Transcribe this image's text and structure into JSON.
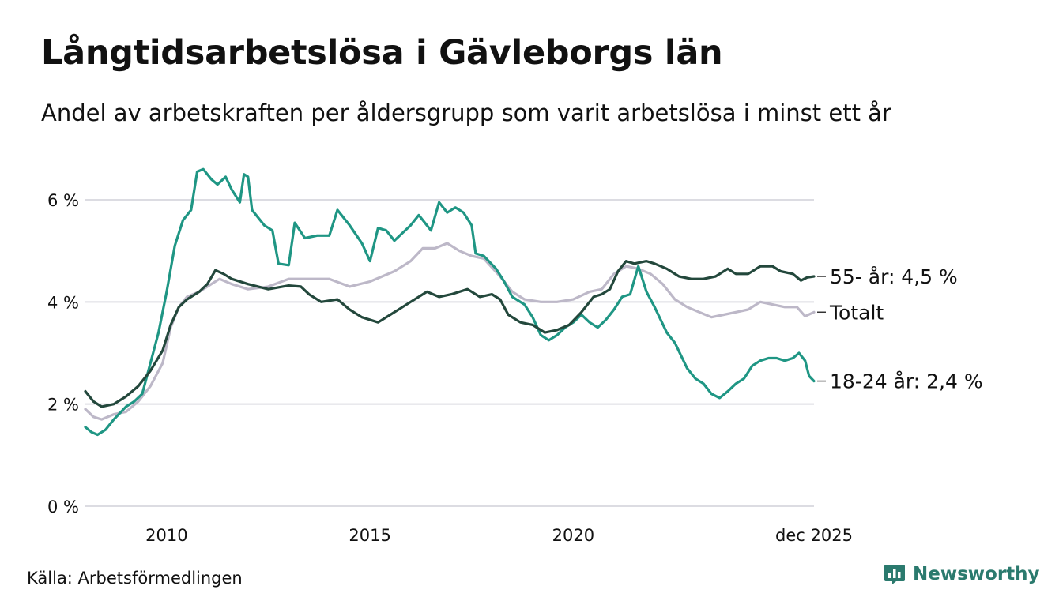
{
  "title": "Långtidsarbetslösa i Gävleborgs län",
  "subtitle": "Andel av arbetskraften per åldersgrupp som varit arbetslösa i minst ett år",
  "source": "Källa: Arbetsförmedlingen",
  "brand": {
    "name": "Newsworthy",
    "icon": "bar-chart-logo-icon"
  },
  "colors": {
    "s55": "#23483c",
    "total": "#bdb8c8",
    "youth": "#1f9684",
    "grid": "#dcdce2",
    "brand": "#2b7a6e"
  },
  "chart_data": {
    "type": "line",
    "title": "Långtidsarbetslösa i Gävleborgs län",
    "xlabel": "",
    "ylabel": "",
    "xlim": [
      2008.0,
      2025.92
    ],
    "ylim": [
      0,
      6
    ],
    "grid": true,
    "y_ticks": [
      {
        "value": 0,
        "label": "0 %"
      },
      {
        "value": 2,
        "label": "2 %"
      },
      {
        "value": 4,
        "label": "4 %"
      },
      {
        "value": 6,
        "label": "6 %"
      }
    ],
    "x_ticks": [
      {
        "value": 2010,
        "label": "2010"
      },
      {
        "value": 2015,
        "label": "2015"
      },
      {
        "value": 2020,
        "label": "2020"
      },
      {
        "value": 2025.92,
        "label": "dec 2025"
      }
    ],
    "series": [
      {
        "name": "55- år",
        "color_key": "s55",
        "end_label": "55- år: 4,5 %",
        "points": [
          [
            2008.0,
            2.25
          ],
          [
            2008.2,
            2.05
          ],
          [
            2008.4,
            1.95
          ],
          [
            2008.7,
            2.0
          ],
          [
            2009.0,
            2.15
          ],
          [
            2009.3,
            2.35
          ],
          [
            2009.6,
            2.65
          ],
          [
            2009.9,
            3.05
          ],
          [
            2010.1,
            3.55
          ],
          [
            2010.3,
            3.9
          ],
          [
            2010.5,
            4.05
          ],
          [
            2010.8,
            4.2
          ],
          [
            2011.0,
            4.35
          ],
          [
            2011.2,
            4.62
          ],
          [
            2011.4,
            4.55
          ],
          [
            2011.6,
            4.45
          ],
          [
            2012.0,
            4.35
          ],
          [
            2012.5,
            4.25
          ],
          [
            2013.0,
            4.32
          ],
          [
            2013.3,
            4.3
          ],
          [
            2013.5,
            4.15
          ],
          [
            2013.8,
            4.0
          ],
          [
            2014.2,
            4.05
          ],
          [
            2014.5,
            3.85
          ],
          [
            2014.8,
            3.7
          ],
          [
            2015.2,
            3.6
          ],
          [
            2015.5,
            3.75
          ],
          [
            2015.8,
            3.9
          ],
          [
            2016.0,
            4.0
          ],
          [
            2016.4,
            4.2
          ],
          [
            2016.7,
            4.1
          ],
          [
            2017.0,
            4.15
          ],
          [
            2017.4,
            4.25
          ],
          [
            2017.7,
            4.1
          ],
          [
            2018.0,
            4.15
          ],
          [
            2018.2,
            4.05
          ],
          [
            2018.4,
            3.75
          ],
          [
            2018.7,
            3.6
          ],
          [
            2019.0,
            3.55
          ],
          [
            2019.3,
            3.4
          ],
          [
            2019.6,
            3.45
          ],
          [
            2019.9,
            3.55
          ],
          [
            2020.2,
            3.8
          ],
          [
            2020.5,
            4.1
          ],
          [
            2020.7,
            4.15
          ],
          [
            2020.9,
            4.25
          ],
          [
            2021.1,
            4.6
          ],
          [
            2021.3,
            4.8
          ],
          [
            2021.5,
            4.75
          ],
          [
            2021.8,
            4.8
          ],
          [
            2022.0,
            4.75
          ],
          [
            2022.3,
            4.65
          ],
          [
            2022.6,
            4.5
          ],
          [
            2022.9,
            4.45
          ],
          [
            2023.2,
            4.45
          ],
          [
            2023.5,
            4.5
          ],
          [
            2023.8,
            4.65
          ],
          [
            2024.0,
            4.55
          ],
          [
            2024.3,
            4.55
          ],
          [
            2024.6,
            4.7
          ],
          [
            2024.9,
            4.7
          ],
          [
            2025.1,
            4.6
          ],
          [
            2025.4,
            4.55
          ],
          [
            2025.6,
            4.42
          ],
          [
            2025.75,
            4.48
          ],
          [
            2025.92,
            4.5
          ]
        ]
      },
      {
        "name": "Totalt",
        "color_key": "total",
        "end_label": "Totalt",
        "points": [
          [
            2008.0,
            1.9
          ],
          [
            2008.2,
            1.75
          ],
          [
            2008.4,
            1.7
          ],
          [
            2008.7,
            1.8
          ],
          [
            2009.0,
            1.85
          ],
          [
            2009.3,
            2.05
          ],
          [
            2009.6,
            2.35
          ],
          [
            2009.9,
            2.8
          ],
          [
            2010.1,
            3.5
          ],
          [
            2010.3,
            3.9
          ],
          [
            2010.5,
            4.1
          ],
          [
            2010.8,
            4.2
          ],
          [
            2011.0,
            4.3
          ],
          [
            2011.3,
            4.45
          ],
          [
            2011.6,
            4.35
          ],
          [
            2012.0,
            4.25
          ],
          [
            2012.5,
            4.3
          ],
          [
            2013.0,
            4.45
          ],
          [
            2013.5,
            4.45
          ],
          [
            2014.0,
            4.45
          ],
          [
            2014.5,
            4.3
          ],
          [
            2015.0,
            4.4
          ],
          [
            2015.3,
            4.5
          ],
          [
            2015.6,
            4.6
          ],
          [
            2016.0,
            4.8
          ],
          [
            2016.3,
            5.05
          ],
          [
            2016.6,
            5.05
          ],
          [
            2016.9,
            5.15
          ],
          [
            2017.2,
            5.0
          ],
          [
            2017.5,
            4.9
          ],
          [
            2017.8,
            4.85
          ],
          [
            2018.2,
            4.5
          ],
          [
            2018.5,
            4.2
          ],
          [
            2018.8,
            4.05
          ],
          [
            2019.2,
            4.0
          ],
          [
            2019.6,
            4.0
          ],
          [
            2020.0,
            4.05
          ],
          [
            2020.4,
            4.2
          ],
          [
            2020.7,
            4.25
          ],
          [
            2021.0,
            4.55
          ],
          [
            2021.3,
            4.7
          ],
          [
            2021.6,
            4.65
          ],
          [
            2021.9,
            4.55
          ],
          [
            2022.2,
            4.35
          ],
          [
            2022.5,
            4.05
          ],
          [
            2022.8,
            3.9
          ],
          [
            2023.1,
            3.8
          ],
          [
            2023.4,
            3.7
          ],
          [
            2023.7,
            3.75
          ],
          [
            2024.0,
            3.8
          ],
          [
            2024.3,
            3.85
          ],
          [
            2024.6,
            4.0
          ],
          [
            2024.9,
            3.95
          ],
          [
            2025.2,
            3.9
          ],
          [
            2025.5,
            3.9
          ],
          [
            2025.7,
            3.72
          ],
          [
            2025.92,
            3.8
          ]
        ]
      },
      {
        "name": "18-24 år",
        "color_key": "youth",
        "end_label": "18-24 år: 2,4 %",
        "points": [
          [
            2008.0,
            1.55
          ],
          [
            2008.15,
            1.45
          ],
          [
            2008.3,
            1.4
          ],
          [
            2008.5,
            1.5
          ],
          [
            2008.7,
            1.7
          ],
          [
            2009.0,
            1.95
          ],
          [
            2009.2,
            2.05
          ],
          [
            2009.4,
            2.2
          ],
          [
            2009.6,
            2.8
          ],
          [
            2009.8,
            3.4
          ],
          [
            2010.0,
            4.2
          ],
          [
            2010.2,
            5.1
          ],
          [
            2010.4,
            5.6
          ],
          [
            2010.6,
            5.8
          ],
          [
            2010.75,
            6.55
          ],
          [
            2010.9,
            6.6
          ],
          [
            2011.1,
            6.4
          ],
          [
            2011.25,
            6.3
          ],
          [
            2011.45,
            6.45
          ],
          [
            2011.6,
            6.2
          ],
          [
            2011.8,
            5.95
          ],
          [
            2011.9,
            6.5
          ],
          [
            2012.0,
            6.45
          ],
          [
            2012.1,
            5.8
          ],
          [
            2012.4,
            5.5
          ],
          [
            2012.6,
            5.4
          ],
          [
            2012.75,
            4.75
          ],
          [
            2013.0,
            4.72
          ],
          [
            2013.15,
            5.55
          ],
          [
            2013.4,
            5.25
          ],
          [
            2013.7,
            5.3
          ],
          [
            2014.0,
            5.3
          ],
          [
            2014.2,
            5.8
          ],
          [
            2014.5,
            5.5
          ],
          [
            2014.8,
            5.15
          ],
          [
            2015.0,
            4.8
          ],
          [
            2015.2,
            5.45
          ],
          [
            2015.4,
            5.4
          ],
          [
            2015.6,
            5.2
          ],
          [
            2015.8,
            5.35
          ],
          [
            2016.0,
            5.5
          ],
          [
            2016.2,
            5.7
          ],
          [
            2016.5,
            5.4
          ],
          [
            2016.7,
            5.95
          ],
          [
            2016.9,
            5.75
          ],
          [
            2017.1,
            5.85
          ],
          [
            2017.3,
            5.75
          ],
          [
            2017.5,
            5.5
          ],
          [
            2017.6,
            4.95
          ],
          [
            2017.8,
            4.9
          ],
          [
            2018.1,
            4.65
          ],
          [
            2018.3,
            4.4
          ],
          [
            2018.5,
            4.1
          ],
          [
            2018.8,
            3.95
          ],
          [
            2019.0,
            3.7
          ],
          [
            2019.2,
            3.35
          ],
          [
            2019.4,
            3.25
          ],
          [
            2019.6,
            3.35
          ],
          [
            2019.8,
            3.5
          ],
          [
            2020.0,
            3.6
          ],
          [
            2020.2,
            3.75
          ],
          [
            2020.4,
            3.6
          ],
          [
            2020.6,
            3.5
          ],
          [
            2020.8,
            3.65
          ],
          [
            2021.0,
            3.85
          ],
          [
            2021.2,
            4.1
          ],
          [
            2021.4,
            4.15
          ],
          [
            2021.6,
            4.7
          ],
          [
            2021.8,
            4.2
          ],
          [
            2022.0,
            3.9
          ],
          [
            2022.3,
            3.4
          ],
          [
            2022.5,
            3.2
          ],
          [
            2022.8,
            2.7
          ],
          [
            2023.0,
            2.5
          ],
          [
            2023.2,
            2.4
          ],
          [
            2023.4,
            2.2
          ],
          [
            2023.6,
            2.12
          ],
          [
            2023.8,
            2.25
          ],
          [
            2024.0,
            2.4
          ],
          [
            2024.2,
            2.5
          ],
          [
            2024.4,
            2.75
          ],
          [
            2024.6,
            2.85
          ],
          [
            2024.8,
            2.9
          ],
          [
            2025.0,
            2.9
          ],
          [
            2025.2,
            2.85
          ],
          [
            2025.4,
            2.9
          ],
          [
            2025.55,
            3.0
          ],
          [
            2025.7,
            2.85
          ],
          [
            2025.8,
            2.55
          ],
          [
            2025.92,
            2.45
          ]
        ]
      }
    ]
  }
}
